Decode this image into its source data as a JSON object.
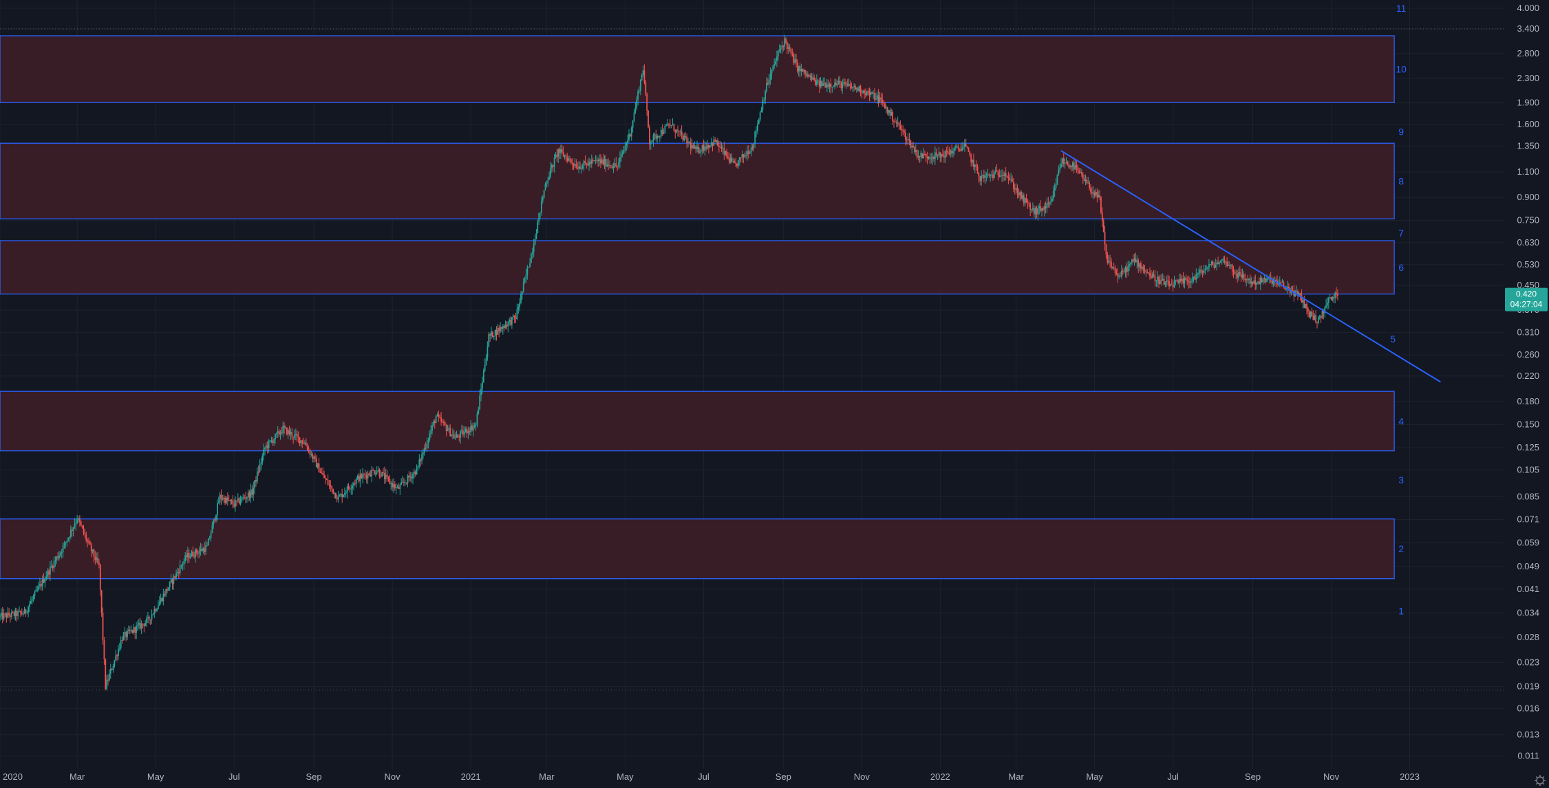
{
  "chart_data": {
    "type": "candlestick",
    "scale": "log",
    "grid": true,
    "legend": "none",
    "x_range": [
      "2020-01-01",
      "2023-03-15"
    ],
    "ylim": [
      0.0105,
      4.0
    ],
    "x_ticks": [
      {
        "label": "2020",
        "date": "2020-01-01"
      },
      {
        "label": "Mar",
        "date": "2020-03-01"
      },
      {
        "label": "May",
        "date": "2020-05-01"
      },
      {
        "label": "Jul",
        "date": "2020-07-01"
      },
      {
        "label": "Sep",
        "date": "2020-09-01"
      },
      {
        "label": "Nov",
        "date": "2020-11-01"
      },
      {
        "label": "2021",
        "date": "2021-01-01"
      },
      {
        "label": "Mar",
        "date": "2021-03-01"
      },
      {
        "label": "May",
        "date": "2021-05-01"
      },
      {
        "label": "Jul",
        "date": "2021-07-01"
      },
      {
        "label": "Sep",
        "date": "2021-09-01"
      },
      {
        "label": "Nov",
        "date": "2021-11-01"
      },
      {
        "label": "2022",
        "date": "2022-01-01"
      },
      {
        "label": "Mar",
        "date": "2022-03-01"
      },
      {
        "label": "May",
        "date": "2022-05-01"
      },
      {
        "label": "Jul",
        "date": "2022-07-01"
      },
      {
        "label": "Sep",
        "date": "2022-09-01"
      },
      {
        "label": "Nov",
        "date": "2022-11-01"
      },
      {
        "label": "2023",
        "date": "2023-01-01"
      }
    ],
    "y_ticks": [
      "4.000",
      "3.400",
      "2.800",
      "2.300",
      "1.900",
      "1.600",
      "1.350",
      "1.100",
      "0.900",
      "0.750",
      "0.630",
      "0.530",
      "0.450",
      "0.370",
      "0.310",
      "0.260",
      "0.220",
      "0.180",
      "0.150",
      "0.125",
      "0.105",
      "0.085",
      "0.071",
      "0.059",
      "0.049",
      "0.041",
      "0.034",
      "0.028",
      "0.023",
      "0.019",
      "0.016",
      "0.013",
      "0.011"
    ],
    "price_path": [
      [
        "2020-01-01",
        0.033
      ],
      [
        "2020-01-20",
        0.034
      ],
      [
        "2020-02-05",
        0.045
      ],
      [
        "2020-02-20",
        0.058
      ],
      [
        "2020-03-01",
        0.072
      ],
      [
        "2020-03-10",
        0.058
      ],
      [
        "2020-03-18",
        0.049
      ],
      [
        "2020-03-23",
        0.019
      ],
      [
        "2020-04-05",
        0.028
      ],
      [
        "2020-04-25",
        0.032
      ],
      [
        "2020-05-10",
        0.041
      ],
      [
        "2020-05-25",
        0.053
      ],
      [
        "2020-06-10",
        0.057
      ],
      [
        "2020-06-20",
        0.085
      ],
      [
        "2020-07-01",
        0.08
      ],
      [
        "2020-07-15",
        0.088
      ],
      [
        "2020-07-25",
        0.125
      ],
      [
        "2020-08-08",
        0.145
      ],
      [
        "2020-08-25",
        0.13
      ],
      [
        "2020-09-08",
        0.1
      ],
      [
        "2020-09-20",
        0.084
      ],
      [
        "2020-10-05",
        0.098
      ],
      [
        "2020-10-20",
        0.105
      ],
      [
        "2020-11-05",
        0.09
      ],
      [
        "2020-11-20",
        0.105
      ],
      [
        "2020-12-05",
        0.16
      ],
      [
        "2020-12-20",
        0.135
      ],
      [
        "2021-01-05",
        0.15
      ],
      [
        "2021-01-15",
        0.3
      ],
      [
        "2021-02-05",
        0.35
      ],
      [
        "2021-02-18",
        0.6
      ],
      [
        "2021-02-28",
        1.0
      ],
      [
        "2021-03-10",
        1.3
      ],
      [
        "2021-03-25",
        1.15
      ],
      [
        "2021-04-10",
        1.2
      ],
      [
        "2021-04-25",
        1.15
      ],
      [
        "2021-05-05",
        1.5
      ],
      [
        "2021-05-15",
        2.5
      ],
      [
        "2021-05-20",
        1.4
      ],
      [
        "2021-06-05",
        1.6
      ],
      [
        "2021-06-25",
        1.3
      ],
      [
        "2021-07-10",
        1.4
      ],
      [
        "2021-07-25",
        1.15
      ],
      [
        "2021-08-08",
        1.35
      ],
      [
        "2021-08-18",
        2.1
      ],
      [
        "2021-08-28",
        2.8
      ],
      [
        "2021-09-02",
        3.1
      ],
      [
        "2021-09-12",
        2.5
      ],
      [
        "2021-09-28",
        2.2
      ],
      [
        "2021-10-15",
        2.2
      ],
      [
        "2021-11-01",
        2.1
      ],
      [
        "2021-11-15",
        1.95
      ],
      [
        "2021-12-01",
        1.55
      ],
      [
        "2021-12-15",
        1.25
      ],
      [
        "2022-01-01",
        1.25
      ],
      [
        "2022-01-20",
        1.35
      ],
      [
        "2022-02-01",
        1.05
      ],
      [
        "2022-02-20",
        1.1
      ],
      [
        "2022-03-05",
        0.9
      ],
      [
        "2022-03-15",
        0.8
      ],
      [
        "2022-03-28",
        0.85
      ],
      [
        "2022-04-05",
        1.2
      ],
      [
        "2022-04-15",
        1.15
      ],
      [
        "2022-04-25",
        1.0
      ],
      [
        "2022-05-05",
        0.88
      ],
      [
        "2022-05-10",
        0.56
      ],
      [
        "2022-05-20",
        0.48
      ],
      [
        "2022-06-01",
        0.55
      ],
      [
        "2022-06-15",
        0.48
      ],
      [
        "2022-06-28",
        0.45
      ],
      [
        "2022-07-15",
        0.47
      ],
      [
        "2022-07-28",
        0.52
      ],
      [
        "2022-08-10",
        0.55
      ],
      [
        "2022-08-20",
        0.49
      ],
      [
        "2022-09-01",
        0.46
      ],
      [
        "2022-09-15",
        0.47
      ],
      [
        "2022-09-28",
        0.44
      ],
      [
        "2022-10-08",
        0.41
      ],
      [
        "2022-10-15",
        0.36
      ],
      [
        "2022-10-22",
        0.34
      ],
      [
        "2022-10-30",
        0.4
      ],
      [
        "2022-11-06",
        0.42
      ]
    ],
    "zones": [
      {
        "low": 1.9,
        "high": 3.22,
        "label": "10"
      },
      {
        "low": 0.76,
        "high": 1.38,
        "label": "8"
      },
      {
        "low": 0.42,
        "high": 0.64,
        "label": "6"
      },
      {
        "low": 0.122,
        "high": 0.195,
        "label": "4"
      },
      {
        "low": 0.0445,
        "high": 0.0713,
        "label": "2"
      }
    ],
    "zone_end_date": "2022-12-20",
    "level_labels": [
      {
        "label": "11",
        "price": 4.0
      },
      {
        "label": "9",
        "price": 1.51
      },
      {
        "label": "7",
        "price": 0.68
      },
      {
        "label": "5",
        "price": 0.295
      },
      {
        "label": "3",
        "price": 0.097
      },
      {
        "label": "1",
        "price": 0.0345
      }
    ],
    "trendline": {
      "from": [
        "2022-04-05",
        1.3
      ],
      "to": [
        "2023-01-25",
        0.21
      ]
    },
    "dotted_levels": [
      3.4,
      0.0185
    ],
    "last_price": {
      "value": "0.420",
      "countdown": "04:27:04",
      "price": 0.42
    }
  },
  "colors": {
    "background": "#131722",
    "grid": "#1e222d",
    "up": "#26a69a",
    "down": "#ef5350",
    "zone_fill": "#3a1e27",
    "zone_border": "#2962ff",
    "trendline": "#2962ff",
    "axis_text": "#b2b5be",
    "price_tag": "#26a69a"
  },
  "icons": {
    "settings": "gear-icon"
  }
}
